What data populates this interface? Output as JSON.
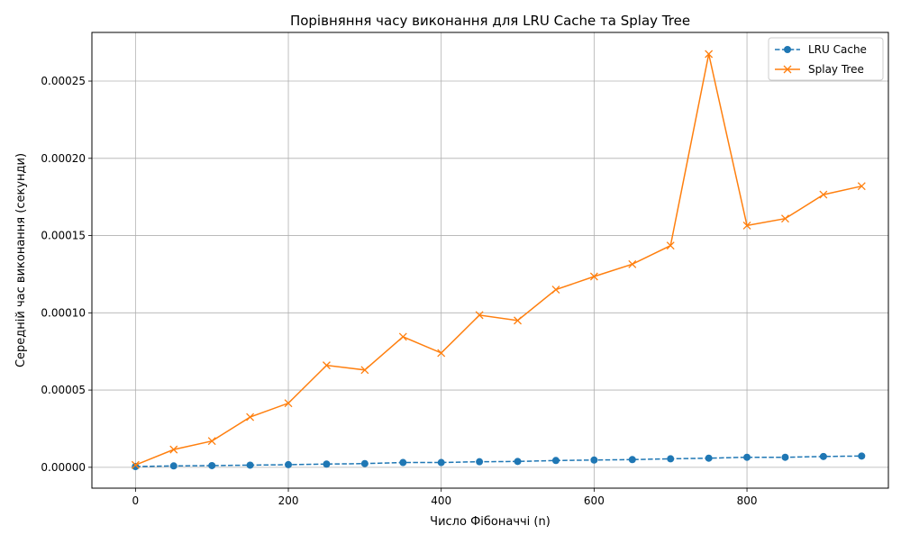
{
  "chart_data": {
    "type": "line",
    "title": "Порівняння часу виконання для LRU Cache та Splay Tree",
    "xlabel": "Число Фібоначчі (n)",
    "ylabel": "Середній час виконання (секунди)",
    "xlim": [
      -57,
      985
    ],
    "ylim": [
      -1.35e-05,
      0.0002815
    ],
    "x_ticks": [
      0,
      200,
      400,
      600,
      800
    ],
    "x_tick_labels": [
      "0",
      "200",
      "400",
      "600",
      "800"
    ],
    "y_ticks": [
      0,
      5e-05,
      0.0001,
      0.00015,
      0.0002,
      0.00025
    ],
    "y_tick_labels": [
      "0.00000",
      "0.00005",
      "0.00010",
      "0.00015",
      "0.00020",
      "0.00025"
    ],
    "grid": true,
    "legend_position": "top-right",
    "x": [
      0,
      50,
      100,
      150,
      200,
      250,
      300,
      350,
      400,
      450,
      500,
      550,
      600,
      650,
      700,
      750,
      800,
      850,
      900,
      950
    ],
    "series": [
      {
        "name": "LRU Cache",
        "color": "#1f77b4",
        "line_style": "dashed",
        "marker": "circle",
        "values": [
          5e-07,
          9e-07,
          1.1e-06,
          1.4e-06,
          1.7e-06,
          2.1e-06,
          2.4e-06,
          3.1e-06,
          3.1e-06,
          3.6e-06,
          3.8e-06,
          4.4e-06,
          4.7e-06,
          5e-06,
          5.5e-06,
          5.9e-06,
          6.5e-06,
          6.5e-06,
          7e-06,
          7.3e-06
        ]
      },
      {
        "name": "Splay Tree",
        "color": "#ff7f0e",
        "line_style": "solid",
        "marker": "x",
        "values": [
          1.5e-06,
          1.15e-05,
          1.7e-05,
          3.25e-05,
          4.15e-05,
          6.6e-05,
          6.3e-05,
          8.45e-05,
          7.4e-05,
          9.85e-05,
          9.5e-05,
          0.000115,
          0.0001235,
          0.0001315,
          0.0001435,
          0.0002675,
          0.0001565,
          0.000161,
          0.0001765,
          0.000182
        ]
      }
    ]
  }
}
